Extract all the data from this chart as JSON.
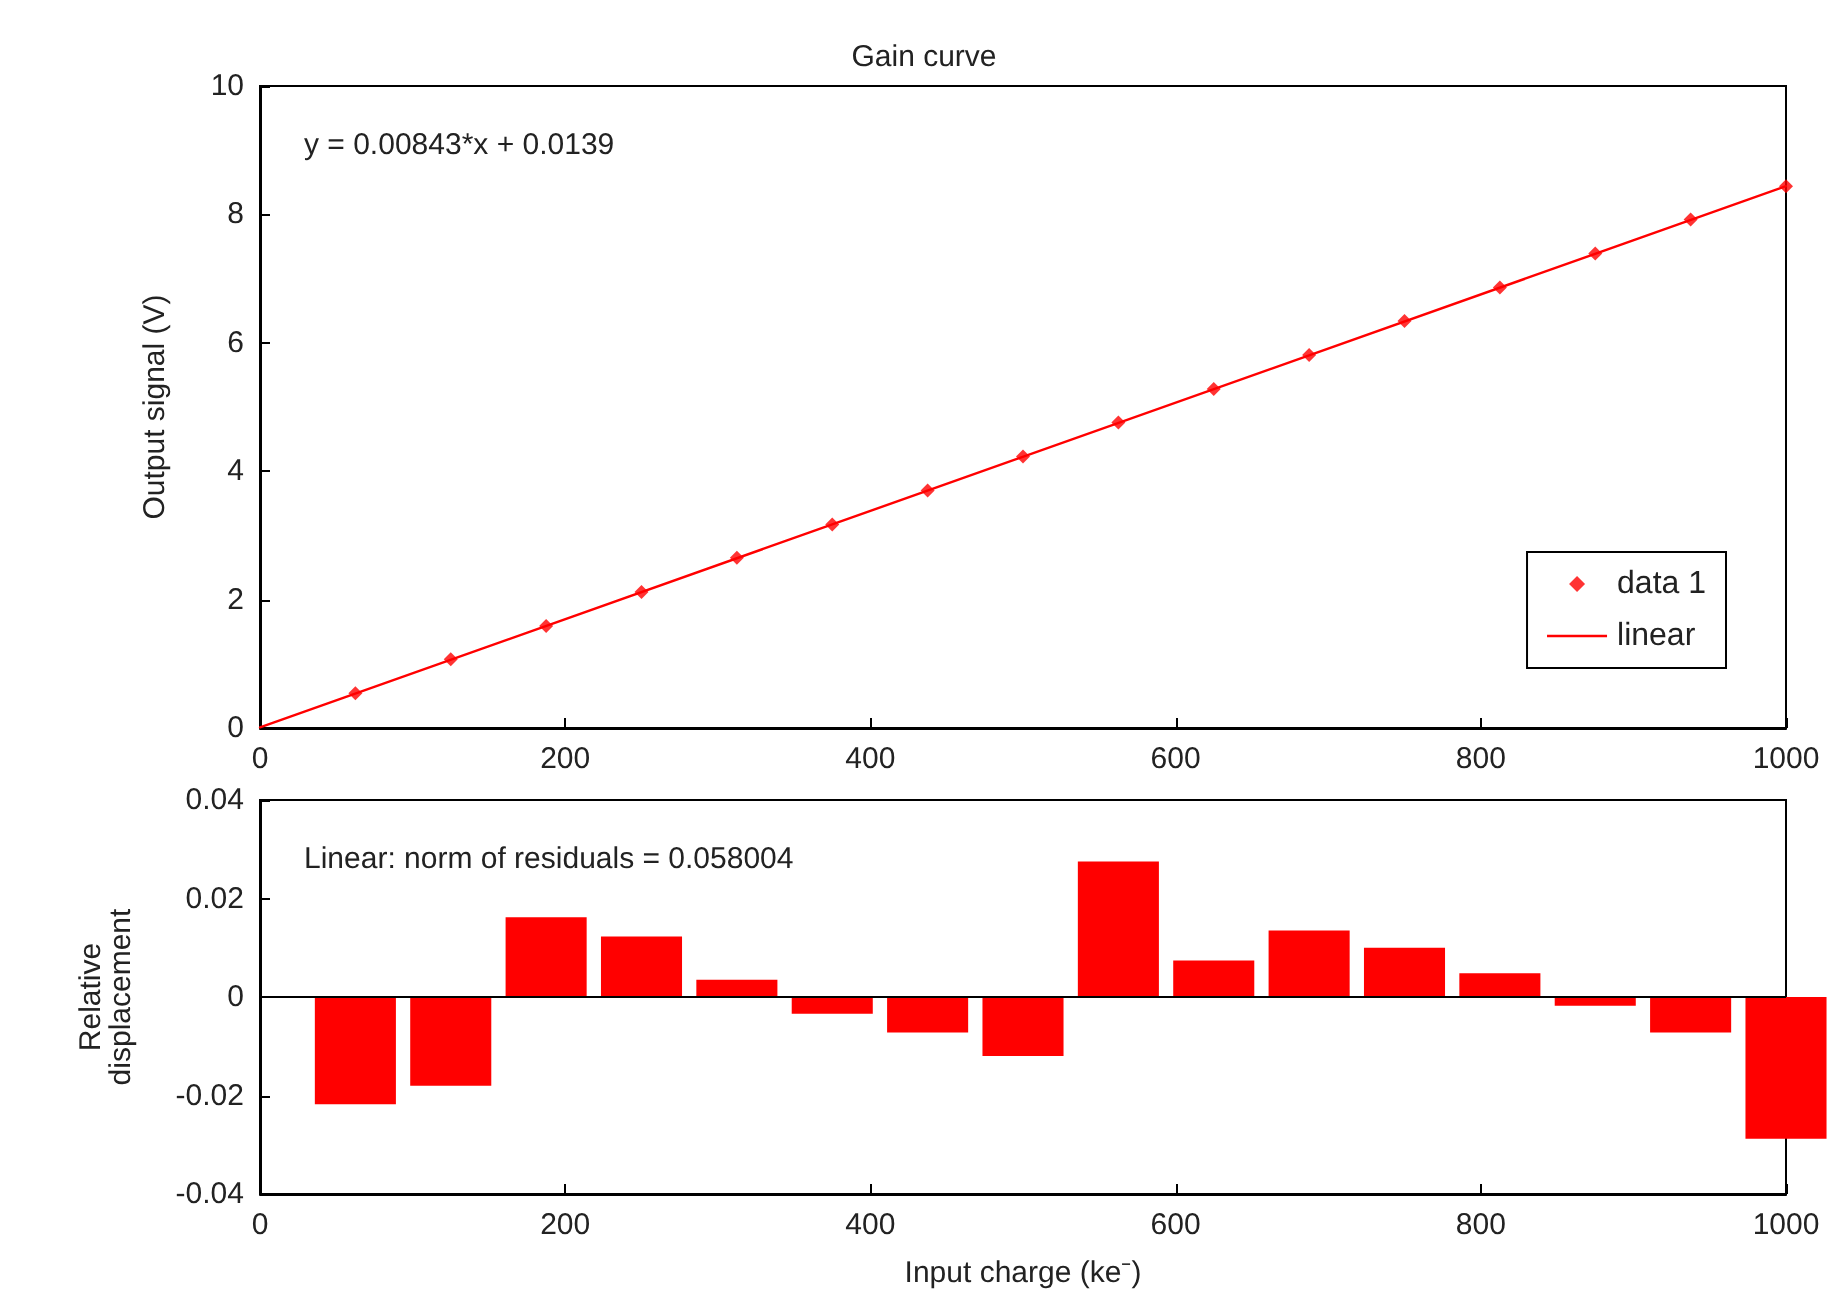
{
  "chart_data": [
    {
      "type": "scatter",
      "title": "Gain curve",
      "ylabel": "Output signal (V)",
      "xlim": [
        0,
        1000
      ],
      "xticks": [
        0,
        200,
        400,
        600,
        800,
        1000
      ],
      "ylim": [
        0,
        10
      ],
      "yticks": [
        0,
        2,
        4,
        6,
        8,
        10
      ],
      "grid": false,
      "legend": "bottom right",
      "annotations": [
        "y = 0.00843*x + 0.0139"
      ],
      "series": [
        {
          "name": "data 1",
          "marker": "diamond",
          "color": "#ff0000",
          "x": [
            62.5,
            125,
            187.5,
            250,
            312.5,
            375,
            437.5,
            500,
            562.5,
            625,
            687.5,
            750,
            812.5,
            875,
            937.5,
            1000
          ],
          "values": [
            0.54,
            1.07,
            1.59,
            2.12,
            2.65,
            3.17,
            3.7,
            4.23,
            4.76,
            5.28,
            5.81,
            6.34,
            6.86,
            7.39,
            7.92,
            8.44
          ]
        },
        {
          "name": "linear",
          "type": "line",
          "marker": "none",
          "line_style": "solid",
          "color": "#ff0000",
          "x": [
            0,
            1000
          ],
          "values": [
            0.01,
            8.44
          ]
        }
      ]
    },
    {
      "type": "bar",
      "xlabel": "Input charge (ke⁻)",
      "ylabel": "Relative\ndisplacement",
      "xlim": [
        0,
        1000
      ],
      "xticks": [
        0,
        200,
        400,
        600,
        800,
        1000
      ],
      "ylim": [
        -0.04,
        0.04
      ],
      "yticks": [
        -0.04,
        -0.02,
        0,
        0.02,
        0.04
      ],
      "grid": false,
      "annotations": [
        "Linear: norm of residuals = 0.058004"
      ],
      "ref_lines": [
        {
          "axis": "y",
          "value": 0,
          "color": "#000000"
        }
      ],
      "x": [
        62.5,
        125,
        187.5,
        250,
        312.5,
        375,
        437.5,
        500,
        562.5,
        625,
        687.5,
        750,
        812.5,
        875,
        937.5,
        1000
      ],
      "series": [
        {
          "color": "#ff0000",
          "values": [
            -0.0218,
            -0.018,
            0.0162,
            0.0123,
            0.0035,
            -0.0034,
            -0.0072,
            -0.012,
            0.0275,
            0.0074,
            0.0135,
            0.01,
            0.0048,
            -0.0018,
            -0.0072,
            -0.0288
          ]
        }
      ]
    }
  ]
}
